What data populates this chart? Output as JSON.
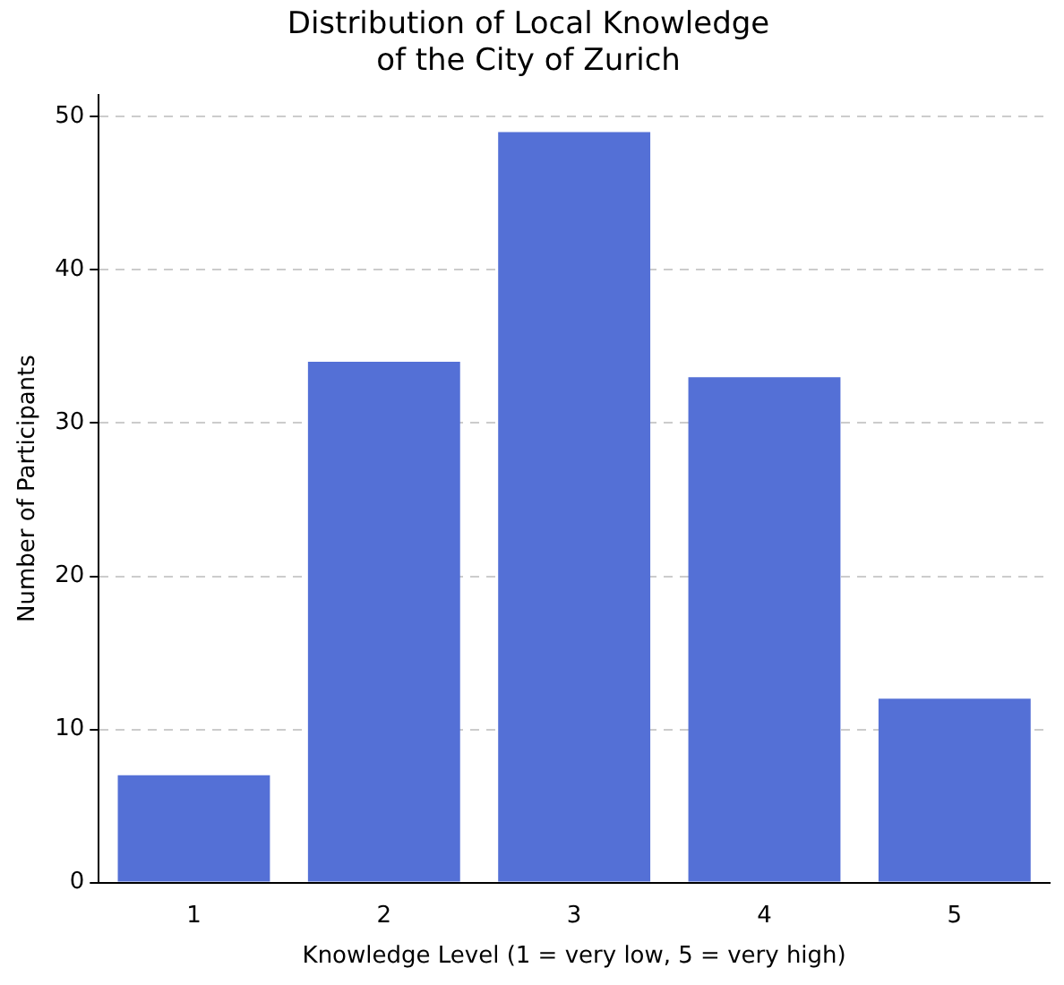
{
  "chart_data": {
    "type": "bar",
    "title": "Distribution of Local Knowledge\nof the City of Zurich",
    "xlabel": "Knowledge Level (1 = very low, 5 = very high)",
    "ylabel": "Number of Participants",
    "categories": [
      "1",
      "2",
      "3",
      "4",
      "5"
    ],
    "values": [
      7,
      34,
      49,
      33,
      12
    ],
    "color": "#5470d6",
    "ylim": [
      0,
      51.45
    ],
    "yticks": [
      0,
      10,
      20,
      30,
      40,
      50
    ],
    "grid": "y",
    "legend": false
  }
}
